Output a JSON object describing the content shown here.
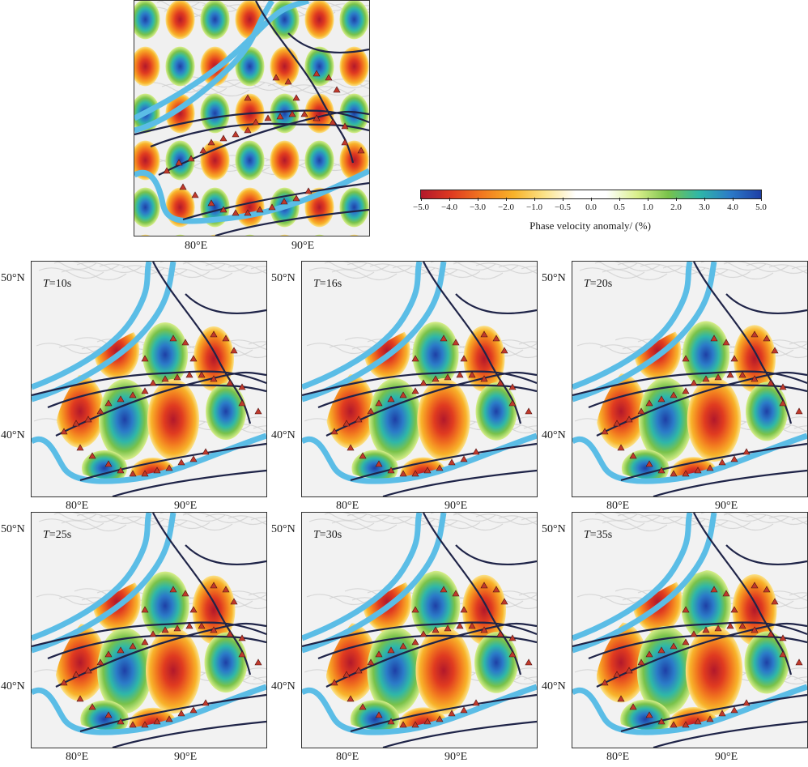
{
  "colorbar": {
    "title": "Phase velocity anomaly/ (%)",
    "ticks": [
      "−5.0",
      "−4.0",
      "−3.0",
      "−2.0",
      "−1.0",
      "−0.5",
      "0.0",
      "0.5",
      "1.0",
      "2.0",
      "3.0",
      "4.0",
      "5.0"
    ],
    "colors": [
      "#b2182b",
      "#e03b20",
      "#f27a1f",
      "#f8b32a",
      "#fbe38a",
      "#ffffff",
      "#ffffff",
      "#d9ef8b",
      "#79c24a",
      "#2fb7a8",
      "#2b7bc8",
      "#1e3fa6"
    ]
  },
  "checkerboard": {
    "lon_labels": [
      "80°E",
      "90°E"
    ]
  },
  "panels": [
    {
      "period_prefix": "T",
      "period_value": "=10s",
      "lat_labels": [
        "50°N",
        "40°N"
      ],
      "lon_labels": [
        "80°E",
        "90°E"
      ]
    },
    {
      "period_prefix": "T",
      "period_value": "=16s",
      "lat_labels": [
        "50°N",
        "40°N"
      ],
      "lon_labels": [
        "80°E",
        "90°E"
      ]
    },
    {
      "period_prefix": "T",
      "period_value": "=20s",
      "lat_labels": [
        "50°N",
        "40°N"
      ],
      "lon_labels": [
        "80°E",
        "90°E"
      ]
    },
    {
      "period_prefix": "T",
      "period_value": "=25s",
      "lat_labels": [
        "50°N",
        "40°N"
      ],
      "lon_labels": [
        "80°E",
        "90°E"
      ]
    },
    {
      "period_prefix": "T",
      "period_value": "=30s",
      "lat_labels": [
        "50°N",
        "40°N"
      ],
      "lon_labels": [
        "80°E",
        "90°E"
      ]
    },
    {
      "period_prefix": "T",
      "period_value": "=35s",
      "lat_labels": [
        "50°N",
        "40°N"
      ],
      "lon_labels": [
        "80°E",
        "90°E"
      ]
    }
  ],
  "colors": {
    "boundary": "#5bbde6",
    "fault": "#1f2448",
    "station": "#c0392b"
  }
}
